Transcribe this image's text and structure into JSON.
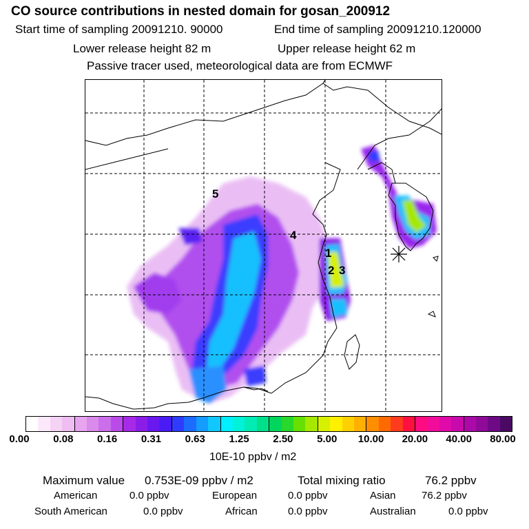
{
  "header": {
    "title": "CO  source contributions in nested domain for gosan_200912",
    "start_sampling": "Start time of sampling 20091210. 90000",
    "end_sampling": "End time of sampling 20091210.120000",
    "lower_release": "Lower release height   82 m",
    "upper_release": "Upper release height   62 m",
    "tracer_note": "Passive tracer used, meteorological data are from ECMWF"
  },
  "map": {
    "region_labels": [
      {
        "id": "1",
        "text": "1"
      },
      {
        "id": "2",
        "text": "2"
      },
      {
        "id": "3",
        "text": "3"
      },
      {
        "id": "4",
        "text": "4"
      },
      {
        "id": "5",
        "text": "5"
      }
    ],
    "receptor_marker": "asterisk-icon"
  },
  "colorbar": {
    "colors": [
      "#ffffff",
      "#fbe9fb",
      "#f5d3f5",
      "#efbdf2",
      "#e7a4ef",
      "#d98aeb",
      "#cb6ee9",
      "#bb4be8",
      "#a62ae8",
      "#8a1ee8",
      "#6a18f0",
      "#4a1cf5",
      "#2f3cff",
      "#1c6cff",
      "#159cff",
      "#10c8ff",
      "#00f0ff",
      "#00f2d8",
      "#00ecb4",
      "#00e08a",
      "#00d55e",
      "#28d82c",
      "#66e000",
      "#a6e800",
      "#d6f000",
      "#fff000",
      "#ffd000",
      "#ffb000",
      "#ff8e00",
      "#ff6a00",
      "#ff3c1e",
      "#ff1040",
      "#ff0c80",
      "#f20c9c",
      "#e00aa8",
      "#c80aac",
      "#ac0aa8",
      "#900a9a",
      "#6e0a86",
      "#4a0a64"
    ],
    "ticks": [
      "0.00",
      "0.08",
      "0.16",
      "0.31",
      "0.63",
      "1.25",
      "2.50",
      "5.00",
      "10.00",
      "20.00",
      "40.00",
      "80.00"
    ],
    "unit": "10E-10 ppbv / m2"
  },
  "summary": {
    "max_value_label": "Maximum value",
    "max_value": "0.753E-09 ppbv / m2",
    "total_label": "Total mixing ratio",
    "total_value": "76.2 ppbv",
    "american_label": "American",
    "american_value": "0.0 ppbv",
    "european_label": "European",
    "european_value": "0.0 ppbv",
    "asian_label": "Asian",
    "asian_value": "76.2 ppbv",
    "south_american_label": "South American",
    "south_american_value": "0.0 ppbv",
    "african_label": "African",
    "african_value": "0.0 ppbv",
    "australian_label": "Australian",
    "australian_value": "0.0 ppbv"
  }
}
